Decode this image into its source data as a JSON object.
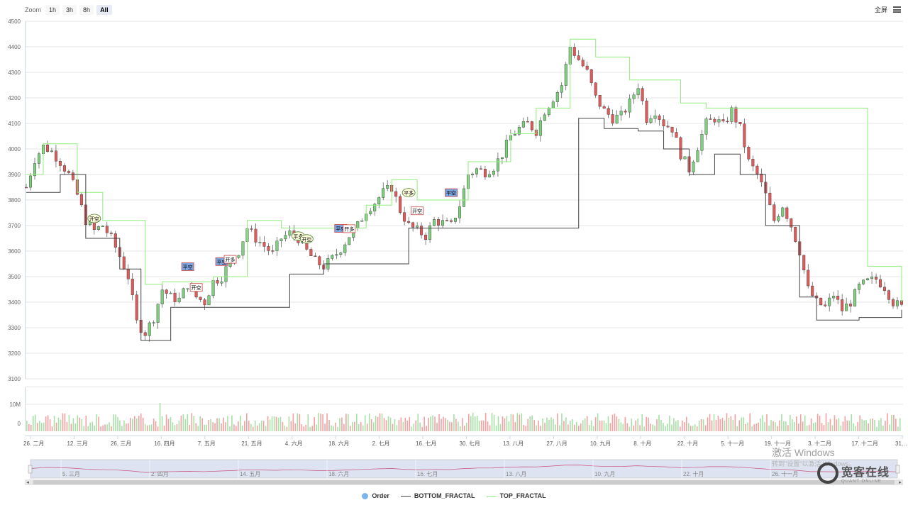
{
  "toolbar": {
    "zoom_label": "Zoom",
    "zoom_buttons": [
      "1h",
      "3h",
      "8h",
      "All"
    ],
    "active_zoom": "All",
    "fullscreen_label": "全屏"
  },
  "legend": {
    "items": [
      {
        "label": "Order",
        "color": "#7cb5ec"
      },
      {
        "label": "BOTTOM_FRACTAL",
        "color": "#434348"
      },
      {
        "label": "TOP_FRACTAL",
        "color": "#90ed7d"
      }
    ]
  },
  "watermark": {
    "line1": "激活 Windows",
    "line2": "转到\"设置\"以激活 Windows。"
  },
  "brand": {
    "cn": "宽客在线",
    "en": "QUANT ONLINE"
  },
  "colors": {
    "up": "#7ccf7c",
    "down": "#e05a5a",
    "top": "#90ed7d",
    "bottom": "#434348",
    "grid": "#e6e6e6",
    "navigator_fill": "#dde3f0",
    "navigator_line": "#c9507f"
  },
  "chart_data": {
    "type": "candlestick",
    "price_axis": {
      "ticks": [
        3100,
        3200,
        3300,
        3400,
        3500,
        3600,
        3700,
        3800,
        3900,
        4000,
        4100,
        4200,
        4300,
        4400,
        4500
      ],
      "range": [
        3100,
        4500
      ]
    },
    "volume_axis": {
      "ticks": [
        "0",
        "10M"
      ]
    },
    "x_tick_labels": [
      "26. 二月",
      "12. 三月",
      "26. 三月",
      "16. 四月",
      "7. 五月",
      "21. 五月",
      "4. 六月",
      "18. 六月",
      "2. 七月",
      "16. 七月",
      "30. 七月",
      "13. 八月",
      "27. 八月",
      "10. 九月",
      "8. 十月",
      "22. 十月",
      "5. 十一月",
      "19. 十一月",
      "3. 十二月",
      "17. 十二月",
      "31…"
    ],
    "navigator_labels": [
      "5. 三月",
      "2. 四月",
      "14. 五月",
      "18. 六月",
      "16. 七月",
      "13. 八月",
      "10. 九月",
      "22. 十月",
      "26. 十一月"
    ],
    "price_path": [
      [
        0,
        3850
      ],
      [
        2,
        3960
      ],
      [
        4,
        4010
      ],
      [
        6,
        3990
      ],
      [
        8,
        3950
      ],
      [
        10,
        3900
      ],
      [
        12,
        3820
      ],
      [
        14,
        3720
      ],
      [
        16,
        3680
      ],
      [
        18,
        3700
      ],
      [
        20,
        3650
      ],
      [
        22,
        3580
      ],
      [
        24,
        3500
      ],
      [
        26,
        3320
      ],
      [
        28,
        3280
      ],
      [
        30,
        3340
      ],
      [
        32,
        3450
      ],
      [
        34,
        3420
      ],
      [
        36,
        3410
      ],
      [
        38,
        3470
      ],
      [
        40,
        3420
      ],
      [
        42,
        3400
      ],
      [
        44,
        3480
      ],
      [
        46,
        3500
      ],
      [
        48,
        3560
      ],
      [
        50,
        3600
      ],
      [
        52,
        3690
      ],
      [
        54,
        3650
      ],
      [
        56,
        3620
      ],
      [
        58,
        3590
      ],
      [
        60,
        3650
      ],
      [
        62,
        3670
      ],
      [
        64,
        3650
      ],
      [
        66,
        3600
      ],
      [
        68,
        3560
      ],
      [
        70,
        3540
      ],
      [
        72,
        3570
      ],
      [
        74,
        3610
      ],
      [
        76,
        3660
      ],
      [
        78,
        3700
      ],
      [
        80,
        3760
      ],
      [
        82,
        3790
      ],
      [
        84,
        3830
      ],
      [
        86,
        3850
      ],
      [
        88,
        3760
      ],
      [
        90,
        3700
      ],
      [
        92,
        3680
      ],
      [
        94,
        3660
      ],
      [
        96,
        3720
      ],
      [
        98,
        3710
      ],
      [
        100,
        3700
      ],
      [
        102,
        3780
      ],
      [
        104,
        3900
      ],
      [
        106,
        3920
      ],
      [
        108,
        3910
      ],
      [
        110,
        3930
      ],
      [
        112,
        3980
      ],
      [
        114,
        4050
      ],
      [
        116,
        4080
      ],
      [
        118,
        4100
      ],
      [
        120,
        4070
      ],
      [
        122,
        4150
      ],
      [
        124,
        4200
      ],
      [
        126,
        4250
      ],
      [
        128,
        4400
      ],
      [
        130,
        4350
      ],
      [
        132,
        4300
      ],
      [
        134,
        4200
      ],
      [
        136,
        4150
      ],
      [
        138,
        4120
      ],
      [
        140,
        4130
      ],
      [
        142,
        4180
      ],
      [
        144,
        4250
      ],
      [
        146,
        4120
      ],
      [
        148,
        4150
      ],
      [
        150,
        4100
      ],
      [
        152,
        4080
      ],
      [
        154,
        3980
      ],
      [
        156,
        3920
      ],
      [
        158,
        4010
      ],
      [
        160,
        4100
      ],
      [
        162,
        4120
      ],
      [
        164,
        4090
      ],
      [
        166,
        4150
      ],
      [
        168,
        4080
      ],
      [
        170,
        3950
      ],
      [
        172,
        3900
      ],
      [
        174,
        3820
      ],
      [
        176,
        3720
      ],
      [
        178,
        3780
      ],
      [
        180,
        3700
      ],
      [
        182,
        3600
      ],
      [
        184,
        3450
      ],
      [
        186,
        3400
      ],
      [
        188,
        3380
      ],
      [
        190,
        3430
      ],
      [
        192,
        3370
      ],
      [
        194,
        3400
      ],
      [
        196,
        3460
      ],
      [
        198,
        3480
      ],
      [
        200,
        3490
      ],
      [
        202,
        3460
      ],
      [
        204,
        3400
      ],
      [
        206,
        3380
      ]
    ],
    "top_fractal": [
      [
        0,
        3900
      ],
      [
        4,
        4020
      ],
      [
        12,
        3830
      ],
      [
        18,
        3720
      ],
      [
        28,
        3470
      ],
      [
        32,
        3480
      ],
      [
        44,
        3500
      ],
      [
        52,
        3720
      ],
      [
        60,
        3690
      ],
      [
        72,
        3690
      ],
      [
        80,
        3780
      ],
      [
        86,
        3880
      ],
      [
        92,
        3800
      ],
      [
        100,
        3800
      ],
      [
        104,
        3950
      ],
      [
        114,
        4060
      ],
      [
        120,
        4160
      ],
      [
        128,
        4430
      ],
      [
        134,
        4360
      ],
      [
        140,
        4360
      ],
      [
        142,
        4270
      ],
      [
        150,
        4270
      ],
      [
        154,
        4180
      ],
      [
        160,
        4160
      ],
      [
        168,
        4160
      ],
      [
        196,
        4160
      ],
      [
        198,
        3540
      ],
      [
        206,
        3400
      ]
    ],
    "bottom_fractal": [
      [
        0,
        3830
      ],
      [
        8,
        3900
      ],
      [
        14,
        3650
      ],
      [
        22,
        3530
      ],
      [
        27,
        3250
      ],
      [
        34,
        3380
      ],
      [
        40,
        3380
      ],
      [
        60,
        3380
      ],
      [
        62,
        3510
      ],
      [
        70,
        3550
      ],
      [
        80,
        3550
      ],
      [
        88,
        3550
      ],
      [
        90,
        3690
      ],
      [
        100,
        3690
      ],
      [
        120,
        3690
      ],
      [
        128,
        3690
      ],
      [
        130,
        4120
      ],
      [
        136,
        4080
      ],
      [
        144,
        4070
      ],
      [
        150,
        4000
      ],
      [
        156,
        3900
      ],
      [
        162,
        3980
      ],
      [
        168,
        3900
      ],
      [
        174,
        3700
      ],
      [
        182,
        3420
      ],
      [
        186,
        3330
      ],
      [
        196,
        3340
      ],
      [
        206,
        3370
      ]
    ],
    "orders": [
      {
        "label": "开空",
        "type": "flag",
        "index": 16,
        "price": 3700
      },
      {
        "label": "平空",
        "type": "flag",
        "index": 38,
        "price": 3500
      },
      {
        "label": "开空",
        "type": "flag",
        "index": 40,
        "price": 3430
      },
      {
        "label": "平空",
        "type": "flag",
        "index": 46,
        "price": 3520
      },
      {
        "label": "开多",
        "type": "flag",
        "index": 48,
        "price": 3540
      },
      {
        "label": "平多",
        "type": "flag",
        "index": 64,
        "price": 3620
      },
      {
        "label": "开空",
        "type": "flag",
        "index": 66,
        "price": 3620
      },
      {
        "label": "平空",
        "type": "flag",
        "index": 74,
        "price": 3650
      },
      {
        "label": "开多",
        "type": "flag",
        "index": 76,
        "price": 3660
      },
      {
        "label": "平多",
        "type": "flag",
        "index": 90,
        "price": 3790
      },
      {
        "label": "开空",
        "type": "flag",
        "index": 92,
        "price": 3730
      },
      {
        "label": "平空",
        "type": "flag",
        "index": 100,
        "price": 3790
      }
    ]
  }
}
